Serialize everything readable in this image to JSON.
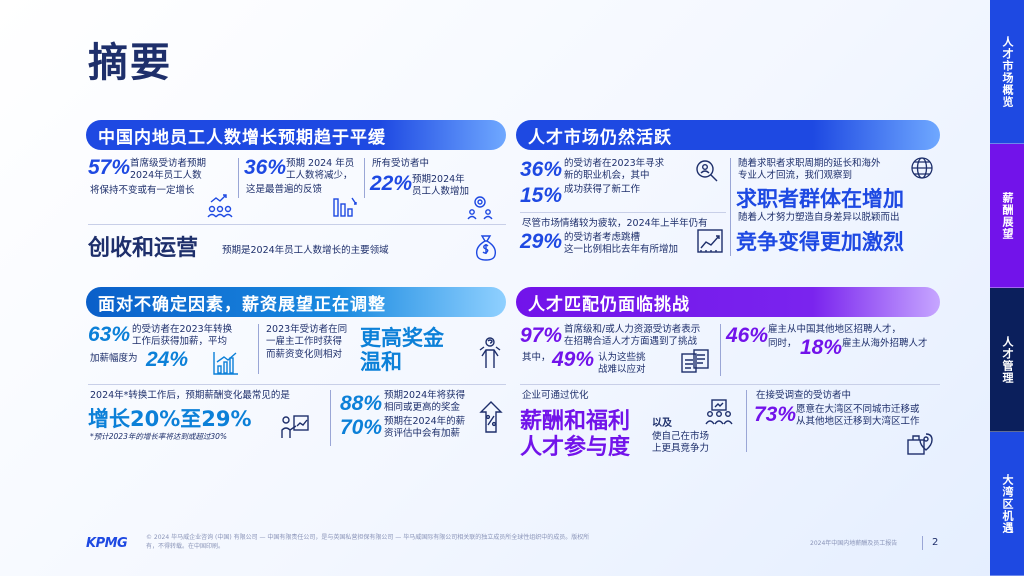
{
  "page_title": "摘要",
  "side_nav": [
    "人才市场概览",
    "薪酬展望",
    "人才管理",
    "大湾区机遇"
  ],
  "sections": {
    "s1": {
      "title": "中国内地员工人数增长预期趋于平缓",
      "stat1_value": "57%",
      "stat1_text_a": "首席级受访者预期",
      "stat1_text_b": "2024年员工人数",
      "stat1_text_c": "将保持不变或有一定增长",
      "stat2_value": "36%",
      "stat2_text_a": "预期 2024 年员",
      "stat2_text_b": "工人数将减少，",
      "stat2_text_c": "这是最普遍的反馈",
      "stat3_head": "所有受访者中",
      "stat3_value": "22%",
      "stat3_text_a": "预期2024年",
      "stat3_text_b": "员工人数增加",
      "headline": "创收和运营",
      "headline_note": "预期是2024年员工人数增长的主要领域"
    },
    "s2": {
      "title": "人才市场仍然活跃",
      "stat1_value": "36%",
      "stat1_text_a": "的受访者在2023年寻求",
      "stat1_text_b": "新的职业机会，其中",
      "stat2_value": "15%",
      "stat2_text": "成功获得了新工作",
      "note_a": "尽管市场情绪较为疲软，2024年上半年仍有",
      "stat3_value": "29%",
      "stat3_text_a": "的受访者考虑跳槽",
      "stat3_text_b": "这一比例相比去年有所增加",
      "right_text_a": "随着求职者求职周期的延长和海外",
      "right_text_b": "专业人才回流，我们观察到",
      "right_head1": "求职者群体在增加",
      "right_text_c": "随着人才努力塑造自身差异以脱颖而出",
      "right_head2": "竞争变得更加激烈"
    },
    "s3": {
      "title": "面对不确定因素，薪资展望正在调整",
      "stat1_value": "63%",
      "stat1_text_a": "的受访者在2023年转换",
      "stat1_text_b": "工作后获得加薪，平均",
      "stat1_text_c": "加薪幅度为",
      "stat2_value": "24%",
      "mid_text_a": "2023年受访者在同",
      "mid_text_b": "一雇主工作时获得",
      "mid_text_c": "而薪资变化则相对",
      "head1": "更高奖金",
      "head2": "温和",
      "lower_text": "2024年*转换工作后，预期薪酬变化最常见的是",
      "lower_head": "增长20%至29%",
      "lower_note": "*预计2023年的增长率将达到或超过30%",
      "stat3_value": "88%",
      "stat3_text_a": "预期2024年将获得",
      "stat3_text_b": "相同或更高的奖金",
      "stat4_value": "70%",
      "stat4_text_a": "预期在2024年的薪",
      "stat4_text_b": "资评估中会有加薪"
    },
    "s4": {
      "title": "人才匹配仍面临挑战",
      "stat1_value": "97%",
      "stat1_text_a": "首席级和/或人力资源受访者表示",
      "stat1_text_b": "在招聘合适人才方面遇到了挑战",
      "stat1_text_c": "其中，",
      "stat2_value": "49%",
      "stat2_text_a": "认为这些挑",
      "stat2_text_b": "战难以应对",
      "stat3_value": "46%",
      "stat3_text_a": "雇主从中国其他地区招聘人才，",
      "stat3_text_b": "同时，",
      "stat4_value": "18%",
      "stat4_text": "雇主从海外招聘人才",
      "lower_text": "企业可通过优化",
      "lower_head1": "薪酬和福利",
      "lower_and": "以及",
      "lower_head2": "人才参与度",
      "lower_tail_a": "使自己在市场",
      "lower_tail_b": "上更具竞争力",
      "stat5_head": "在接受调查的受访者中",
      "stat5_value": "73%",
      "stat5_text_a": "愿意在大湾区不同城市迁移或",
      "stat5_text_b": "从其他地区迁移到大湾区工作"
    }
  },
  "footer": {
    "logo": "KPMG",
    "legal_a": "© 2024 毕马威企业咨询 (中国) 有限公司 — 中国有限责任公司，是与英国私营担保有限公司 — 毕马威国际有限公司相关联的独立成员所全球性组织中的成员。版权所",
    "legal_b": "有，不得转载。在中国印刷。",
    "report_name": "2024年中国内地薪酬及员工报告",
    "page_number": "2"
  },
  "colors": {
    "navy": "#1e2f6b",
    "blue": "#1e49e2",
    "cyan": "#0c80d8",
    "purple": "#7213ea",
    "nav1": "#1e49e2",
    "nav2": "#7213ea",
    "nav3": "#0b1f5c",
    "nav4": "#1e49e2"
  }
}
